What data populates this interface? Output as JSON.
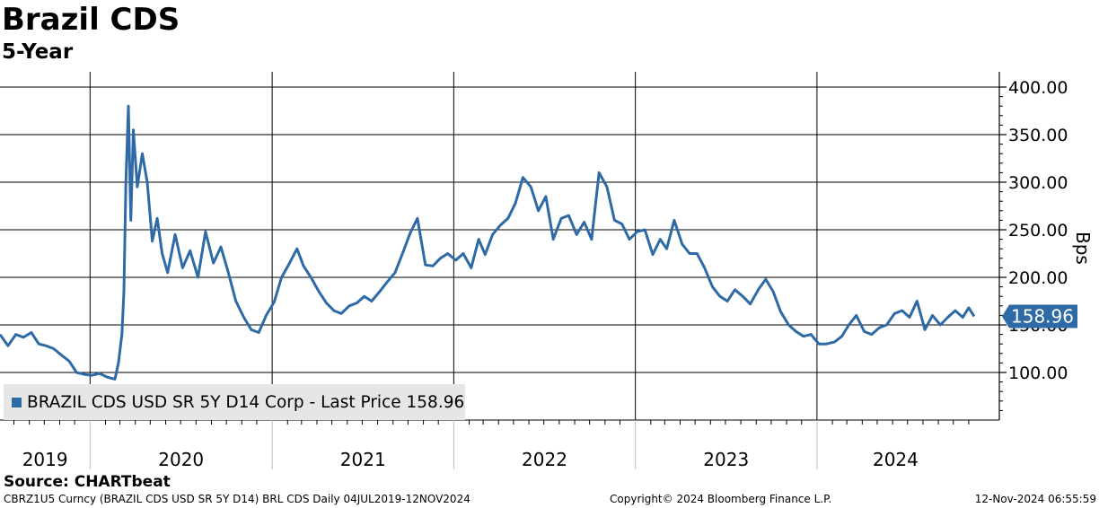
{
  "header": {
    "title": "Brazil CDS",
    "subtitle": "5-Year"
  },
  "legend": {
    "label": "BRAZIL CDS USD SR 5Y D14 Corp - Last Price 158.96"
  },
  "footer": {
    "source": "Source: CHARTbeat",
    "left": "CBRZ1U5 Curncy (BRAZIL CDS USD SR 5Y D14) BRL CDS  Daily 04JUL2019-12NOV2024",
    "center": "Copyright© 2024 Bloomberg Finance L.P.",
    "right": "12-Nov-2024 06:55:59"
  },
  "colors": {
    "line": "#2e6aa5",
    "grid": "#000000",
    "legend_bg": "#e6e6e6"
  },
  "chart_data": {
    "type": "line",
    "title": "Brazil CDS",
    "subtitle": "5-Year",
    "ylabel": "Bps",
    "ylim": [
      50,
      400
    ],
    "yticks": [
      100,
      150,
      200,
      250,
      300,
      350,
      400
    ],
    "ytick_labels": [
      "100.00",
      "150.00",
      "200.00",
      "250.00",
      "300.00",
      "350.00",
      "400.00"
    ],
    "xlim": [
      "2019-07-04",
      "2024-11-12"
    ],
    "x_year_labels": [
      "2019",
      "2020",
      "2021",
      "2022",
      "2023",
      "2024"
    ],
    "grid": true,
    "legend_position": "bottom-left",
    "last_value": 158.96,
    "last_value_label": "158.96",
    "series": [
      {
        "name": "BRAZIL CDS USD SR 5Y D14 Corp - Last Price 158.96",
        "x": [
          "2019-07-04",
          "2019-07-20",
          "2019-08-05",
          "2019-08-20",
          "2019-09-05",
          "2019-09-20",
          "2019-10-05",
          "2019-10-20",
          "2019-11-05",
          "2019-11-20",
          "2019-12-05",
          "2019-12-20",
          "2020-01-05",
          "2020-01-20",
          "2020-02-05",
          "2020-02-20",
          "2020-02-27",
          "2020-03-05",
          "2020-03-09",
          "2020-03-13",
          "2020-03-18",
          "2020-03-23",
          "2020-03-28",
          "2020-04-05",
          "2020-04-15",
          "2020-04-25",
          "2020-05-05",
          "2020-05-15",
          "2020-05-25",
          "2020-06-05",
          "2020-06-20",
          "2020-07-05",
          "2020-07-20",
          "2020-08-05",
          "2020-08-20",
          "2020-09-05",
          "2020-09-20",
          "2020-10-05",
          "2020-10-20",
          "2020-11-05",
          "2020-11-20",
          "2020-12-05",
          "2020-12-20",
          "2021-01-05",
          "2021-01-20",
          "2021-02-05",
          "2021-02-20",
          "2021-03-05",
          "2021-03-20",
          "2021-04-05",
          "2021-04-20",
          "2021-05-05",
          "2021-05-20",
          "2021-06-05",
          "2021-06-20",
          "2021-07-05",
          "2021-07-20",
          "2021-08-05",
          "2021-08-20",
          "2021-09-05",
          "2021-09-20",
          "2021-10-05",
          "2021-10-20",
          "2021-11-05",
          "2021-11-20",
          "2021-12-05",
          "2021-12-20",
          "2022-01-05",
          "2022-01-20",
          "2022-02-05",
          "2022-02-20",
          "2022-03-05",
          "2022-03-20",
          "2022-04-05",
          "2022-04-20",
          "2022-05-05",
          "2022-05-20",
          "2022-06-05",
          "2022-06-20",
          "2022-07-05",
          "2022-07-20",
          "2022-08-05",
          "2022-08-20",
          "2022-09-05",
          "2022-09-20",
          "2022-10-05",
          "2022-10-20",
          "2022-11-05",
          "2022-11-20",
          "2022-12-05",
          "2022-12-20",
          "2023-01-05",
          "2023-01-20",
          "2023-02-05",
          "2023-02-20",
          "2023-03-05",
          "2023-03-20",
          "2023-04-05",
          "2023-04-20",
          "2023-05-05",
          "2023-05-20",
          "2023-06-05",
          "2023-06-20",
          "2023-07-05",
          "2023-07-20",
          "2023-08-05",
          "2023-08-20",
          "2023-09-05",
          "2023-09-20",
          "2023-10-05",
          "2023-10-20",
          "2023-11-05",
          "2023-11-20",
          "2023-12-05",
          "2023-12-20",
          "2024-01-05",
          "2024-01-20",
          "2024-02-05",
          "2024-02-20",
          "2024-03-05",
          "2024-03-20",
          "2024-04-05",
          "2024-04-20",
          "2024-05-05",
          "2024-05-20",
          "2024-06-05",
          "2024-06-20",
          "2024-07-05",
          "2024-07-20",
          "2024-08-05",
          "2024-08-20",
          "2024-09-05",
          "2024-09-20",
          "2024-10-05",
          "2024-10-20",
          "2024-11-01",
          "2024-11-12"
        ],
        "values": [
          140,
          128,
          140,
          137,
          142,
          130,
          128,
          125,
          118,
          112,
          100,
          98,
          97,
          99,
          95,
          93,
          110,
          140,
          185,
          300,
          380,
          260,
          355,
          295,
          330,
          300,
          238,
          262,
          225,
          205,
          245,
          210,
          228,
          200,
          248,
          215,
          232,
          205,
          175,
          158,
          145,
          142,
          160,
          174,
          200,
          215,
          230,
          212,
          200,
          185,
          173,
          165,
          162,
          170,
          173,
          180,
          175,
          185,
          195,
          205,
          225,
          246,
          262,
          213,
          212,
          220,
          225,
          218,
          225,
          210,
          240,
          224,
          245,
          255,
          262,
          278,
          305,
          295,
          270,
          285,
          240,
          262,
          265,
          245,
          258,
          240,
          310,
          295,
          260,
          256,
          240,
          248,
          250,
          224,
          240,
          230,
          260,
          235,
          225,
          225,
          210,
          190,
          180,
          175,
          187,
          180,
          172,
          187,
          198,
          185,
          164,
          150,
          143,
          138,
          140,
          130,
          130,
          132,
          138,
          150,
          160,
          143,
          140,
          147,
          150,
          162,
          165,
          158,
          175,
          145,
          160,
          150,
          158,
          165,
          158,
          168,
          158.96
        ]
      }
    ]
  }
}
